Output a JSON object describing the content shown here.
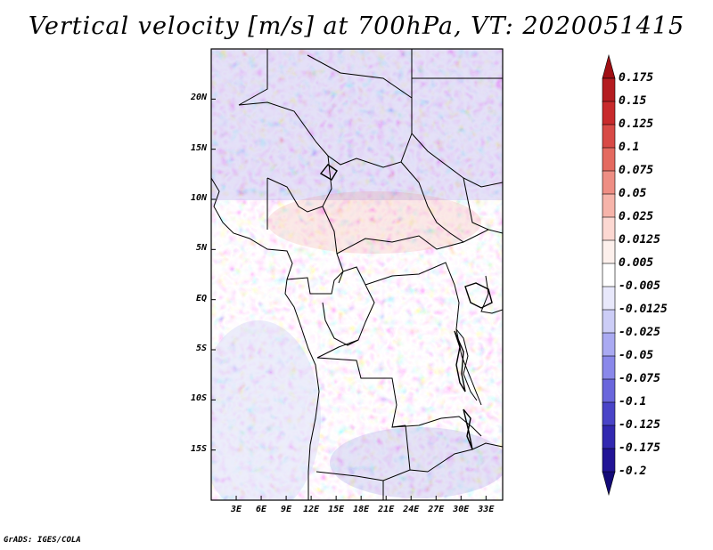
{
  "title": "Vertical velocity [m/s] at 700hPa, VT: 2020051415",
  "credit": "GrADS: IGES/COLA",
  "map": {
    "lon_range": [
      0,
      35
    ],
    "lat_range": [
      -20,
      25
    ],
    "lat_ticks": [
      "20N",
      "15N",
      "10N",
      "5N",
      "EQ",
      "5S",
      "10S",
      "15S"
    ],
    "lat_tick_values": [
      20,
      15,
      10,
      5,
      0,
      -5,
      -10,
      -15
    ],
    "lon_ticks": [
      "3E",
      "6E",
      "9E",
      "12E",
      "15E",
      "18E",
      "21E",
      "24E",
      "27E",
      "30E",
      "33E"
    ],
    "lon_tick_values": [
      3,
      6,
      9,
      12,
      15,
      18,
      21,
      24,
      27,
      30,
      33
    ]
  },
  "colorbar": {
    "labels": [
      "0.175",
      "0.15",
      "0.125",
      "0.1",
      "0.075",
      "0.05",
      "0.025",
      "0.0125",
      "0.005",
      "-0.005",
      "-0.0125",
      "-0.025",
      "-0.05",
      "-0.075",
      "-0.1",
      "-0.125",
      "-0.175",
      "-0.2"
    ],
    "colors": [
      "#a00f14",
      "#b41c20",
      "#c82a2c",
      "#d84a46",
      "#e46a60",
      "#ee8e84",
      "#f6b4aa",
      "#fcd8d2",
      "#fdf0ec",
      "#ffffff",
      "#e8e8fb",
      "#cccdf6",
      "#aaaaf2",
      "#8a88ea",
      "#6a66dc",
      "#4a44c8",
      "#3228b0",
      "#221496",
      "#140a78"
    ]
  }
}
